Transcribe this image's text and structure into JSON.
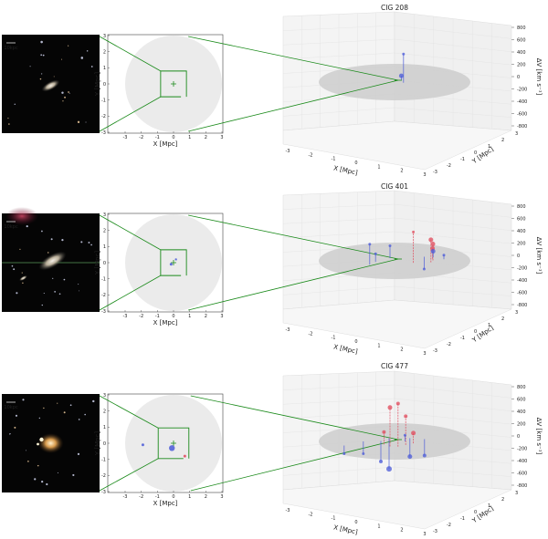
{
  "chart_data": [
    {
      "type": "scatter",
      "title": "CIG 208",
      "image_scale_label": "10kpc",
      "projection": {
        "xlabel": "X [Mpc]",
        "ylabel": "Y [Mpc]",
        "xlim": [
          -3,
          3
        ],
        "ylim": [
          -3,
          3
        ],
        "xticks": [
          "-3",
          "-2",
          "-1",
          "0",
          "1",
          "2",
          "3"
        ],
        "yticks": [
          "3",
          "2",
          "1",
          "0",
          "-1",
          "-2",
          "-3"
        ],
        "zoom_box_mpc": [
          0,
          1.0
        ],
        "neighbours": []
      },
      "view3d": {
        "xlabel": "X [Mpc]",
        "ylabel": "Y [Mpc]",
        "zlabel": "ΔV [km s⁻¹]",
        "xticks": [
          "-3",
          "-2",
          "-1",
          "0",
          "1",
          "2",
          "3"
        ],
        "yticks": [
          "-3",
          "-2",
          "-1",
          "0",
          "1",
          "2",
          "3"
        ],
        "zticks": [
          "800",
          "600",
          "400",
          "200",
          "0",
          "-200",
          "-400",
          "-600",
          "-800"
        ],
        "zlim": [
          -800,
          800
        ],
        "neighbours": [
          {
            "x": 0.3,
            "y": 0.2,
            "dv": 700,
            "color": "blue",
            "size": 1.5
          },
          {
            "x": 0.4,
            "y": -0.3,
            "dv": 100,
            "color": "blue",
            "size": 2.5
          }
        ]
      }
    },
    {
      "type": "scatter",
      "title": "CIG 401",
      "image_scale_label": "10kpc",
      "projection": {
        "xlabel": "X [Mpc]",
        "ylabel": "Y [Mpc]",
        "xlim": [
          -3,
          3
        ],
        "ylim": [
          -3,
          3
        ],
        "xticks": [
          "-3",
          "-2",
          "-1",
          "0",
          "1",
          "2",
          "3"
        ],
        "yticks": [
          "3",
          "2",
          "1",
          "0",
          "-1",
          "-2",
          "-3"
        ],
        "zoom_box_mpc": [
          0,
          1.0
        ],
        "neighbours": [
          {
            "x": -0.15,
            "y": -0.1,
            "color": "blue",
            "size": 1.5
          },
          {
            "x": 0.15,
            "y": 0.2,
            "color": "blue",
            "size": 1.2
          }
        ]
      },
      "view3d": {
        "xlabel": "X [Mpc]",
        "ylabel": "Y [Mpc]",
        "zlabel": "ΔV [km s⁻¹]",
        "xticks": [
          "-3",
          "-2",
          "-1",
          "0",
          "1",
          "2",
          "3"
        ],
        "yticks": [
          "-3",
          "-2",
          "-1",
          "0",
          "1",
          "2",
          "3"
        ],
        "zticks": [
          "800",
          "600",
          "400",
          "200",
          "0",
          "-200",
          "-400",
          "-600",
          "-800"
        ],
        "zlim": [
          -800,
          800
        ],
        "neighbours": [
          {
            "x": -1.2,
            "y": 0.4,
            "dv": 500,
            "color": "blue",
            "size": 1.5
          },
          {
            "x": -0.8,
            "y": 0.0,
            "dv": 200,
            "color": "blue",
            "size": 1.5
          },
          {
            "x": 0.6,
            "y": 0.5,
            "dv": 750,
            "color": "red",
            "size": 1.5
          },
          {
            "x": 1.3,
            "y": 0.6,
            "dv": 550,
            "color": "red",
            "size": 2.5
          },
          {
            "x": 1.5,
            "y": 0.3,
            "dv": 400,
            "color": "red",
            "size": 2.5
          },
          {
            "x": 1.6,
            "y": 0.0,
            "dv": 250,
            "color": "red",
            "size": 2.5
          },
          {
            "x": 1.7,
            "y": -0.2,
            "dv": 150,
            "color": "blue",
            "size": 2.5
          },
          {
            "x": 1.4,
            "y": -0.4,
            "dv": -300,
            "color": "blue",
            "size": 1.5
          },
          {
            "x": 0.0,
            "y": -0.5,
            "dv": 300,
            "color": "blue",
            "size": 1.5
          },
          {
            "x": 2.0,
            "y": 0.2,
            "dv": 100,
            "color": "blue",
            "size": 1.5
          }
        ]
      }
    },
    {
      "type": "scatter",
      "title": "CIG 477",
      "image_scale_label": "10kpc",
      "projection": {
        "xlabel": "X [Mpc]",
        "ylabel": "Y [Mpc]",
        "xlim": [
          -3,
          3
        ],
        "ylim": [
          -3,
          3
        ],
        "xticks": [
          "-3",
          "-2",
          "-1",
          "0",
          "1",
          "2",
          "3"
        ],
        "yticks": [
          "3",
          "2",
          "1",
          "0",
          "-1",
          "-2",
          "-3"
        ],
        "zoom_box_mpc": [
          0,
          1.3
        ],
        "neighbours": [
          {
            "x": -1.9,
            "y": -0.1,
            "color": "blue",
            "size": 1.5
          },
          {
            "x": -0.1,
            "y": -0.3,
            "color": "blue",
            "size": 3.2
          },
          {
            "x": 0.7,
            "y": -0.8,
            "color": "red",
            "size": 1.5
          }
        ]
      },
      "view3d": {
        "xlabel": "X [Mpc]",
        "ylabel": "Y [Mpc]",
        "zlabel": "ΔV [km s⁻¹]",
        "xticks": [
          "-3",
          "-2",
          "-1",
          "0",
          "1",
          "2",
          "3"
        ],
        "yticks": [
          "-3",
          "-2",
          "-1",
          "0",
          "1",
          "2",
          "3"
        ],
        "zticks": [
          "800",
          "600",
          "400",
          "200",
          "0",
          "-200",
          "-400",
          "-600",
          "-800"
        ],
        "zlim": [
          -800,
          800
        ],
        "neighbours": [
          {
            "x": -0.5,
            "y": 0.8,
            "dv": 950,
            "color": "red",
            "size": 2.5
          },
          {
            "x": -0.2,
            "y": 0.9,
            "dv": 1050,
            "color": "red",
            "size": 2
          },
          {
            "x": 0.2,
            "y": 0.7,
            "dv": 700,
            "color": "red",
            "size": 2
          },
          {
            "x": -0.6,
            "y": 0.4,
            "dv": 300,
            "color": "red",
            "size": 2
          },
          {
            "x": 0.6,
            "y": 0.5,
            "dv": 250,
            "color": "red",
            "size": 2.5
          },
          {
            "x": -1.2,
            "y": -0.3,
            "dv": -300,
            "color": "blue",
            "size": 1.5
          },
          {
            "x": -0.5,
            "y": -0.2,
            "dv": -500,
            "color": "blue",
            "size": 2
          },
          {
            "x": 0.0,
            "y": -0.6,
            "dv": -750,
            "color": "blue",
            "size": 3
          },
          {
            "x": 0.8,
            "y": -0.4,
            "dv": -450,
            "color": "blue",
            "size": 2.5
          },
          {
            "x": 1.3,
            "y": -0.1,
            "dv": -400,
            "color": "blue",
            "size": 2
          },
          {
            "x": -2.2,
            "y": 0.2,
            "dv": -200,
            "color": "blue",
            "size": 1.5
          },
          {
            "x": 0.4,
            "y": 0.1,
            "dv": 150,
            "color": "blue",
            "size": 1.5
          }
        ]
      }
    }
  ]
}
